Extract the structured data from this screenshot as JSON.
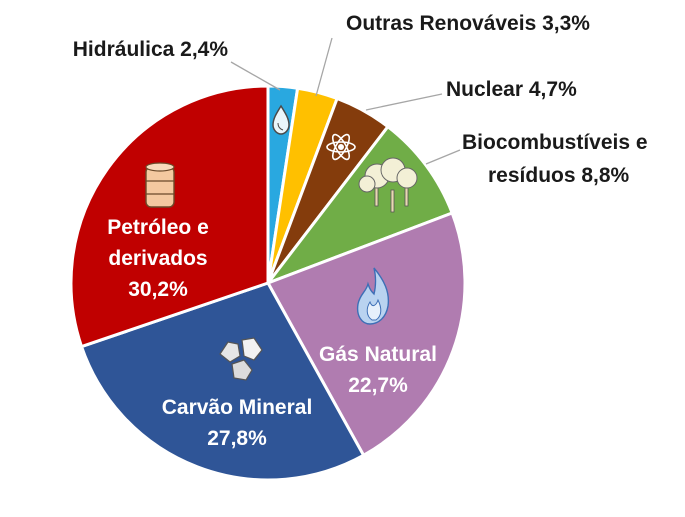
{
  "chart_data": {
    "type": "pie",
    "title": "",
    "start_angle_deg": 0,
    "direction": "clockwise",
    "series": [
      {
        "name": "Hidráulica",
        "value": 2.4,
        "label_lines": [
          "Hidráulica 2,4%"
        ],
        "color": "#29a8e0",
        "label_pos": "outside-left",
        "icon": "water-drop-icon"
      },
      {
        "name": "Outras Renováveis",
        "value": 3.3,
        "label_lines": [
          "Outras Renováveis 3,3%"
        ],
        "color": "#ffc000",
        "label_pos": "outside",
        "icon": ""
      },
      {
        "name": "Nuclear",
        "value": 4.7,
        "label_lines": [
          "Nuclear 4,7%"
        ],
        "color": "#843c0c",
        "label_pos": "outside",
        "icon": "atom-icon"
      },
      {
        "name": "Biocombustíveis e resíduos",
        "value": 8.8,
        "label_lines": [
          "Biocombustíveis e",
          "resíduos 8,8%"
        ],
        "color": "#70ad47",
        "label_pos": "outside",
        "icon": "trees-icon"
      },
      {
        "name": "Gás Natural",
        "value": 22.7,
        "label_lines": [
          "Gás Natural",
          "22,7%"
        ],
        "color": "#b07cb0",
        "label_pos": "inside",
        "icon": "flame-icon"
      },
      {
        "name": "Carvão Mineral",
        "value": 27.8,
        "label_lines": [
          "Carvão Mineral",
          "27,8%"
        ],
        "color": "#2f5597",
        "label_pos": "inside",
        "icon": "coal-icon"
      },
      {
        "name": "Petróleo e derivados",
        "value": 30.2,
        "label_lines": [
          "Petróleo e",
          "derivados",
          "30,2%"
        ],
        "color": "#c00000",
        "label_pos": "inside",
        "icon": "oil-barrel-icon"
      }
    ],
    "legend": "none"
  }
}
